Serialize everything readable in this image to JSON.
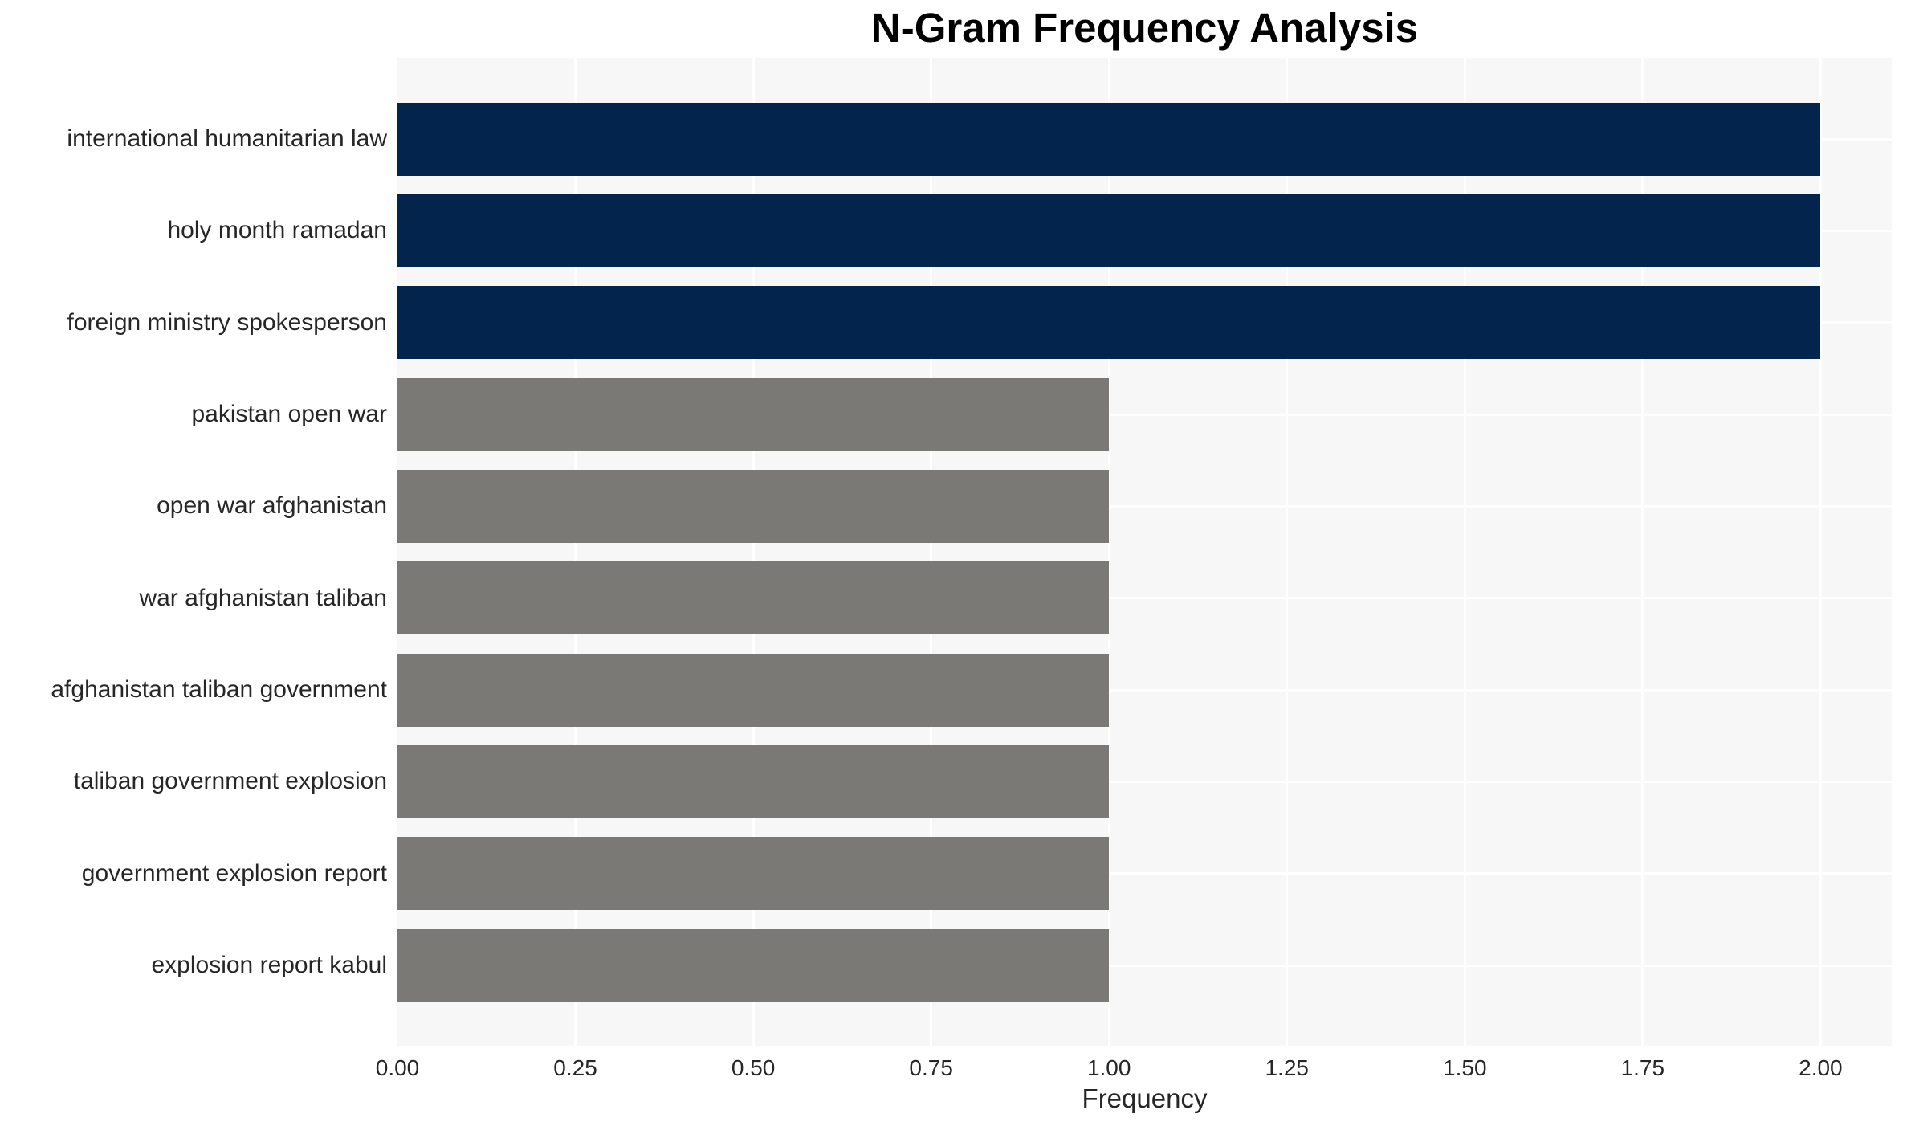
{
  "chart_data": {
    "type": "bar",
    "orientation": "horizontal",
    "title": "N-Gram Frequency Analysis",
    "xlabel": "Frequency",
    "ylabel": "",
    "categories": [
      "international humanitarian law",
      "holy month ramadan",
      "foreign ministry spokesperson",
      "pakistan open war",
      "open war afghanistan",
      "war afghanistan taliban",
      "afghanistan taliban government",
      "taliban government explosion",
      "government explosion report",
      "explosion report kabul"
    ],
    "values": [
      2,
      2,
      2,
      1,
      1,
      1,
      1,
      1,
      1,
      1
    ],
    "bar_colors": [
      "#02244D",
      "#02244D",
      "#02244D",
      "#7A7975",
      "#7A7975",
      "#7A7975",
      "#7A7975",
      "#7A7975",
      "#7A7975",
      "#7A7975"
    ],
    "xlim": [
      0,
      2.1
    ],
    "xticks": [
      0,
      0.25,
      0.5,
      0.75,
      1.0,
      1.25,
      1.5,
      1.75,
      2.0
    ],
    "xtick_labels": [
      "0.00",
      "0.25",
      "0.50",
      "0.75",
      "1.00",
      "1.25",
      "1.50",
      "1.75",
      "2.00"
    ],
    "grid": "on",
    "legend": "none",
    "colors": {
      "high_freq_bar": "#02244D",
      "low_freq_bar": "#7A7975",
      "plot_background": "#F7F7F7",
      "gridline": "#FFFFFF",
      "tick_text": "#262626",
      "title_text": "#000000",
      "figure_background": "#FFFFFF"
    }
  }
}
